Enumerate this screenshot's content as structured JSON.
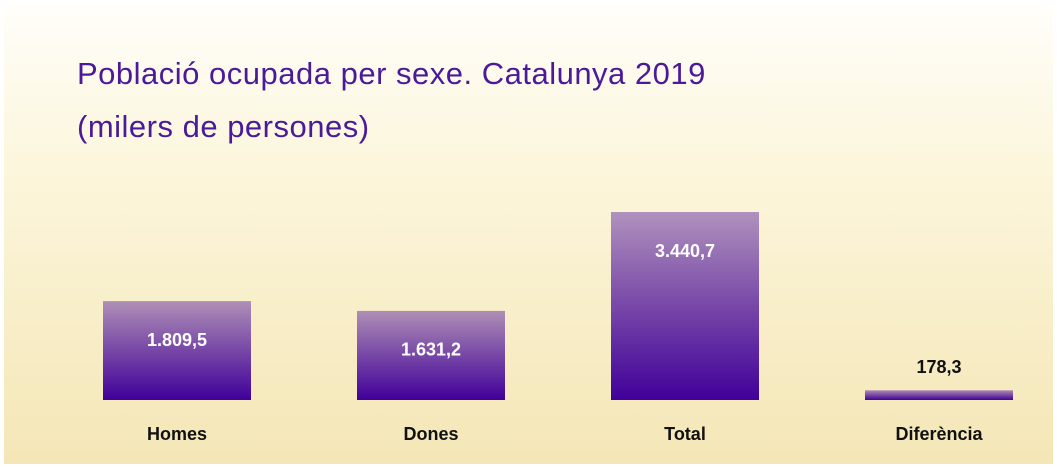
{
  "chart_data": {
    "type": "bar",
    "title": "Població ocupada per sexe. Catalunya 2019",
    "subtitle": "(milers de persones)",
    "categories": [
      "Homes",
      "Dones",
      "Total",
      "Diferència"
    ],
    "values": [
      1809.5,
      1631.2,
      3440.7,
      178.3
    ],
    "value_labels": [
      "1.809,5",
      "1.631,2",
      "3.440,7",
      "178,3"
    ],
    "color": "#40009a"
  }
}
